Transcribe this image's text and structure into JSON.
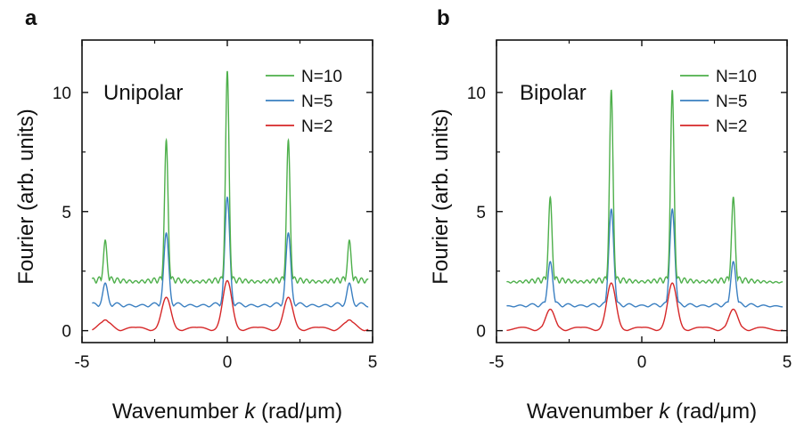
{
  "chart_data": [
    {
      "type": "line",
      "panel_label": "a",
      "annotation": "Unipolar",
      "xlabel_prefix": "Wavenumber ",
      "xlabel_var": "k",
      "xlabel_suffix": " (rad/μm)",
      "ylabel": "Fourier (arb. units)",
      "xlim": [
        -5,
        5
      ],
      "ylim": [
        -0.5,
        12.2
      ],
      "xticks": [
        -5,
        0,
        5
      ],
      "yticks": [
        0,
        5,
        10
      ],
      "grid": false,
      "legend_position": "top-right",
      "peak_positions": [
        -4.2,
        -2.1,
        0,
        2.1,
        4.2
      ],
      "series": [
        {
          "name": "N=10",
          "color": "#4daf4a",
          "N": 10,
          "baseline": 2.0,
          "fringe_amp": 0.28,
          "peak_heights": [
            3.8,
            8.0,
            10.9,
            8.0,
            3.8
          ],
          "envelope_width": 2.1
        },
        {
          "name": "N=5",
          "color": "#3a7fc1",
          "N": 5,
          "baseline": 1.0,
          "fringe_amp": 0.22,
          "peak_heights": [
            2.0,
            4.1,
            5.6,
            4.1,
            2.0
          ],
          "envelope_width": 2.1
        },
        {
          "name": "N=2",
          "color": "#d62728",
          "N": 2,
          "baseline": 0.0,
          "fringe_amp": 0.4,
          "peak_heights": [
            0.45,
            1.4,
            2.1,
            1.4,
            0.45
          ],
          "envelope_width": 2.1
        }
      ]
    },
    {
      "type": "line",
      "panel_label": "b",
      "annotation": "Bipolar",
      "xlabel_prefix": "Wavenumber ",
      "xlabel_var": "k",
      "xlabel_suffix": " (rad/μm)",
      "ylabel": "Fourier (arb. units)",
      "xlim": [
        -5,
        5
      ],
      "ylim": [
        -0.5,
        12.2
      ],
      "xticks": [
        -5,
        0,
        5
      ],
      "yticks": [
        0,
        5,
        10
      ],
      "grid": false,
      "legend_position": "top-right",
      "peak_positions": [
        -3.15,
        -1.05,
        1.05,
        3.15
      ],
      "series": [
        {
          "name": "N=10",
          "color": "#4daf4a",
          "N": 10,
          "baseline": 2.0,
          "fringe_amp": 0.28,
          "peak_heights": [
            5.6,
            10.1,
            10.1,
            5.6
          ],
          "envelope_width": 2.1
        },
        {
          "name": "N=5",
          "color": "#3a7fc1",
          "N": 5,
          "baseline": 1.0,
          "fringe_amp": 0.22,
          "peak_heights": [
            2.9,
            5.1,
            5.1,
            2.9
          ],
          "envelope_width": 2.1
        },
        {
          "name": "N=2",
          "color": "#d62728",
          "N": 2,
          "baseline": 0.0,
          "fringe_amp": 0.4,
          "peak_heights": [
            0.9,
            2.0,
            2.0,
            0.9
          ],
          "envelope_width": 2.1
        }
      ]
    }
  ]
}
